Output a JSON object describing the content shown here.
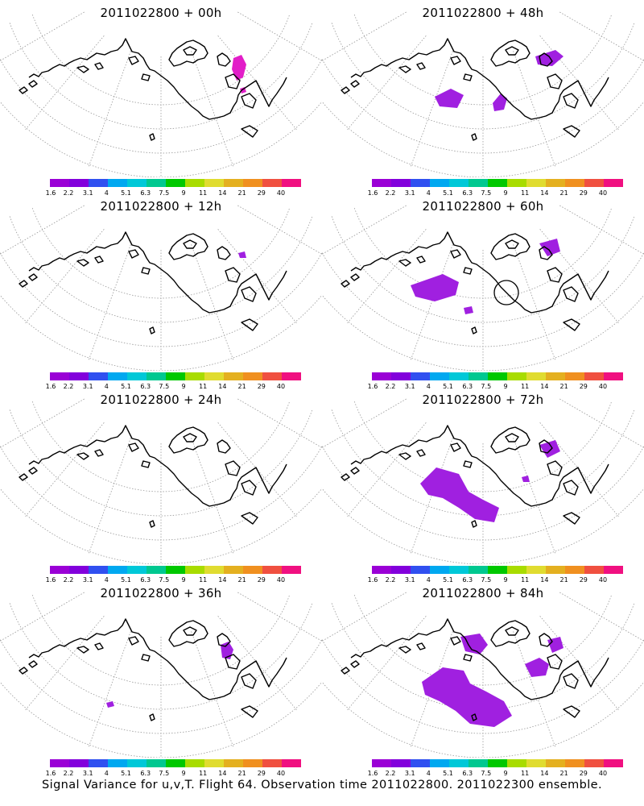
{
  "colorscale": {
    "colors": [
      "#9a00d6",
      "#8200dc",
      "#3050f0",
      "#00a8f0",
      "#00c8d8",
      "#00c890",
      "#00c800",
      "#a8dc00",
      "#e0dc30",
      "#e4b020",
      "#f09020",
      "#f05040",
      "#f01080"
    ],
    "labels": [
      "1.6",
      "2.2",
      "3.1",
      "4",
      "5.1",
      "6.3",
      "7.5",
      "9",
      "11",
      "14",
      "21",
      "29",
      "40"
    ]
  },
  "panels": [
    {
      "title": "2011022800 + 00h",
      "signal_color": "#e21ec8"
    },
    {
      "title": "2011022800 + 48h",
      "signal_color": "#a020e0"
    },
    {
      "title": "2011022800 + 12h",
      "signal_color": "#a020e0"
    },
    {
      "title": "2011022800 + 60h",
      "signal_color": "#a020e0"
    },
    {
      "title": "2011022800 + 24h",
      "signal_color": "#a020e0"
    },
    {
      "title": "2011022800 + 72h",
      "signal_color": "#a020e0"
    },
    {
      "title": "2011022800 + 36h",
      "signal_color": "#a020e0"
    },
    {
      "title": "2011022800 + 84h",
      "signal_color": "#a020e0"
    }
  ],
  "footer": "Signal Variance for u,v,T. Flight 64. Observation time 2011022800. 2011022300 ensemble."
}
